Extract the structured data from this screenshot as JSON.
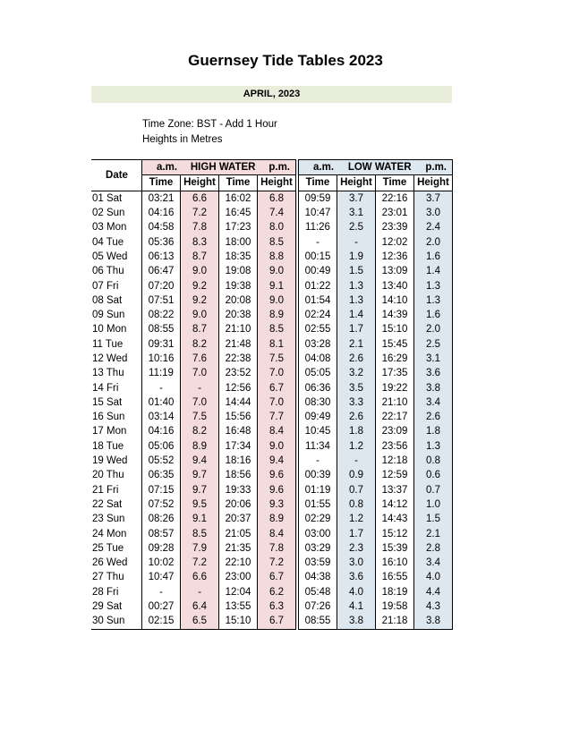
{
  "title": "Guernsey Tide Tables 2023",
  "month": "APRIL, 2023",
  "meta": {
    "timezone": "Time Zone: BST - Add 1 Hour",
    "units": "Heights in Metres"
  },
  "headers": {
    "date": "Date",
    "am": "a.m.",
    "pm": "p.m.",
    "high_water": "HIGH WATER",
    "low_water": "LOW WATER",
    "time": "Time",
    "height": "Height"
  },
  "rows": [
    {
      "date": "01 Sat",
      "hw_am_t": "03:21",
      "hw_am_h": "6.6",
      "hw_pm_t": "16:02",
      "hw_pm_h": "6.8",
      "lw_am_t": "09:59",
      "lw_am_h": "3.7",
      "lw_pm_t": "22:16",
      "lw_pm_h": "3.7"
    },
    {
      "date": "02 Sun",
      "hw_am_t": "04:16",
      "hw_am_h": "7.2",
      "hw_pm_t": "16:45",
      "hw_pm_h": "7.4",
      "lw_am_t": "10:47",
      "lw_am_h": "3.1",
      "lw_pm_t": "23:01",
      "lw_pm_h": "3.0"
    },
    {
      "date": "03 Mon",
      "hw_am_t": "04:58",
      "hw_am_h": "7.8",
      "hw_pm_t": "17:23",
      "hw_pm_h": "8.0",
      "lw_am_t": "11:26",
      "lw_am_h": "2.5",
      "lw_pm_t": "23:39",
      "lw_pm_h": "2.4"
    },
    {
      "date": "04 Tue",
      "hw_am_t": "05:36",
      "hw_am_h": "8.3",
      "hw_pm_t": "18:00",
      "hw_pm_h": "8.5",
      "lw_am_t": "-",
      "lw_am_h": "-",
      "lw_pm_t": "12:02",
      "lw_pm_h": "2.0"
    },
    {
      "date": "05 Wed",
      "hw_am_t": "06:13",
      "hw_am_h": "8.7",
      "hw_pm_t": "18:35",
      "hw_pm_h": "8.8",
      "lw_am_t": "00:15",
      "lw_am_h": "1.9",
      "lw_pm_t": "12:36",
      "lw_pm_h": "1.6"
    },
    {
      "date": "06 Thu",
      "hw_am_t": "06:47",
      "hw_am_h": "9.0",
      "hw_pm_t": "19:08",
      "hw_pm_h": "9.0",
      "lw_am_t": "00:49",
      "lw_am_h": "1.5",
      "lw_pm_t": "13:09",
      "lw_pm_h": "1.4"
    },
    {
      "date": "07 Fri",
      "hw_am_t": "07:20",
      "hw_am_h": "9.2",
      "hw_pm_t": "19:38",
      "hw_pm_h": "9.1",
      "lw_am_t": "01:22",
      "lw_am_h": "1.3",
      "lw_pm_t": "13:40",
      "lw_pm_h": "1.3"
    },
    {
      "date": "08 Sat",
      "hw_am_t": "07:51",
      "hw_am_h": "9.2",
      "hw_pm_t": "20:08",
      "hw_pm_h": "9.0",
      "lw_am_t": "01:54",
      "lw_am_h": "1.3",
      "lw_pm_t": "14:10",
      "lw_pm_h": "1.3"
    },
    {
      "date": "09 Sun",
      "hw_am_t": "08:22",
      "hw_am_h": "9.0",
      "hw_pm_t": "20:38",
      "hw_pm_h": "8.9",
      "lw_am_t": "02:24",
      "lw_am_h": "1.4",
      "lw_pm_t": "14:39",
      "lw_pm_h": "1.6"
    },
    {
      "date": "10 Mon",
      "hw_am_t": "08:55",
      "hw_am_h": "8.7",
      "hw_pm_t": "21:10",
      "hw_pm_h": "8.5",
      "lw_am_t": "02:55",
      "lw_am_h": "1.7",
      "lw_pm_t": "15:10",
      "lw_pm_h": "2.0"
    },
    {
      "date": "11 Tue",
      "hw_am_t": "09:31",
      "hw_am_h": "8.2",
      "hw_pm_t": "21:48",
      "hw_pm_h": "8.1",
      "lw_am_t": "03:28",
      "lw_am_h": "2.1",
      "lw_pm_t": "15:45",
      "lw_pm_h": "2.5"
    },
    {
      "date": "12 Wed",
      "hw_am_t": "10:16",
      "hw_am_h": "7.6",
      "hw_pm_t": "22:38",
      "hw_pm_h": "7.5",
      "lw_am_t": "04:08",
      "lw_am_h": "2.6",
      "lw_pm_t": "16:29",
      "lw_pm_h": "3.1"
    },
    {
      "date": "13 Thu",
      "hw_am_t": "11:19",
      "hw_am_h": "7.0",
      "hw_pm_t": "23:52",
      "hw_pm_h": "7.0",
      "lw_am_t": "05:05",
      "lw_am_h": "3.2",
      "lw_pm_t": "17:35",
      "lw_pm_h": "3.6"
    },
    {
      "date": "14 Fri",
      "hw_am_t": "-",
      "hw_am_h": "-",
      "hw_pm_t": "12:56",
      "hw_pm_h": "6.7",
      "lw_am_t": "06:36",
      "lw_am_h": "3.5",
      "lw_pm_t": "19:22",
      "lw_pm_h": "3.8"
    },
    {
      "date": "15 Sat",
      "hw_am_t": "01:40",
      "hw_am_h": "7.0",
      "hw_pm_t": "14:44",
      "hw_pm_h": "7.0",
      "lw_am_t": "08:30",
      "lw_am_h": "3.3",
      "lw_pm_t": "21:10",
      "lw_pm_h": "3.4"
    },
    {
      "date": "16 Sun",
      "hw_am_t": "03:14",
      "hw_am_h": "7.5",
      "hw_pm_t": "15:56",
      "hw_pm_h": "7.7",
      "lw_am_t": "09:49",
      "lw_am_h": "2.6",
      "lw_pm_t": "22:17",
      "lw_pm_h": "2.6"
    },
    {
      "date": "17 Mon",
      "hw_am_t": "04:16",
      "hw_am_h": "8.2",
      "hw_pm_t": "16:48",
      "hw_pm_h": "8.4",
      "lw_am_t": "10:45",
      "lw_am_h": "1.8",
      "lw_pm_t": "23:09",
      "lw_pm_h": "1.8"
    },
    {
      "date": "18 Tue",
      "hw_am_t": "05:06",
      "hw_am_h": "8.9",
      "hw_pm_t": "17:34",
      "hw_pm_h": "9.0",
      "lw_am_t": "11:34",
      "lw_am_h": "1.2",
      "lw_pm_t": "23:56",
      "lw_pm_h": "1.3"
    },
    {
      "date": "19 Wed",
      "hw_am_t": "05:52",
      "hw_am_h": "9.4",
      "hw_pm_t": "18:16",
      "hw_pm_h": "9.4",
      "lw_am_t": "-",
      "lw_am_h": "-",
      "lw_pm_t": "12:18",
      "lw_pm_h": "0.8"
    },
    {
      "date": "20 Thu",
      "hw_am_t": "06:35",
      "hw_am_h": "9.7",
      "hw_pm_t": "18:56",
      "hw_pm_h": "9.6",
      "lw_am_t": "00:39",
      "lw_am_h": "0.9",
      "lw_pm_t": "12:59",
      "lw_pm_h": "0.6"
    },
    {
      "date": "21 Fri",
      "hw_am_t": "07:15",
      "hw_am_h": "9.7",
      "hw_pm_t": "19:33",
      "hw_pm_h": "9.6",
      "lw_am_t": "01:19",
      "lw_am_h": "0.7",
      "lw_pm_t": "13:37",
      "lw_pm_h": "0.7"
    },
    {
      "date": "22 Sat",
      "hw_am_t": "07:52",
      "hw_am_h": "9.5",
      "hw_pm_t": "20:06",
      "hw_pm_h": "9.3",
      "lw_am_t": "01:55",
      "lw_am_h": "0.8",
      "lw_pm_t": "14:12",
      "lw_pm_h": "1.0"
    },
    {
      "date": "23 Sun",
      "hw_am_t": "08:26",
      "hw_am_h": "9.1",
      "hw_pm_t": "20:37",
      "hw_pm_h": "8.9",
      "lw_am_t": "02:29",
      "lw_am_h": "1.2",
      "lw_pm_t": "14:43",
      "lw_pm_h": "1.5"
    },
    {
      "date": "24 Mon",
      "hw_am_t": "08:57",
      "hw_am_h": "8.5",
      "hw_pm_t": "21:05",
      "hw_pm_h": "8.4",
      "lw_am_t": "03:00",
      "lw_am_h": "1.7",
      "lw_pm_t": "15:12",
      "lw_pm_h": "2.1"
    },
    {
      "date": "25 Tue",
      "hw_am_t": "09:28",
      "hw_am_h": "7.9",
      "hw_pm_t": "21:35",
      "hw_pm_h": "7.8",
      "lw_am_t": "03:29",
      "lw_am_h": "2.3",
      "lw_pm_t": "15:39",
      "lw_pm_h": "2.8"
    },
    {
      "date": "26 Wed",
      "hw_am_t": "10:02",
      "hw_am_h": "7.2",
      "hw_pm_t": "22:10",
      "hw_pm_h": "7.2",
      "lw_am_t": "03:59",
      "lw_am_h": "3.0",
      "lw_pm_t": "16:10",
      "lw_pm_h": "3.4"
    },
    {
      "date": "27 Thu",
      "hw_am_t": "10:47",
      "hw_am_h": "6.6",
      "hw_pm_t": "23:00",
      "hw_pm_h": "6.7",
      "lw_am_t": "04:38",
      "lw_am_h": "3.6",
      "lw_pm_t": "16:55",
      "lw_pm_h": "4.0"
    },
    {
      "date": "28 Fri",
      "hw_am_t": "-",
      "hw_am_h": "-",
      "hw_pm_t": "12:04",
      "hw_pm_h": "6.2",
      "lw_am_t": "05:48",
      "lw_am_h": "4.0",
      "lw_pm_t": "18:19",
      "lw_pm_h": "4.4"
    },
    {
      "date": "29 Sat",
      "hw_am_t": "00:27",
      "hw_am_h": "6.4",
      "hw_pm_t": "13:55",
      "hw_pm_h": "6.3",
      "lw_am_t": "07:26",
      "lw_am_h": "4.1",
      "lw_pm_t": "19:58",
      "lw_pm_h": "4.3"
    },
    {
      "date": "30 Sun",
      "hw_am_t": "02:15",
      "hw_am_h": "6.5",
      "hw_pm_t": "15:10",
      "hw_pm_h": "6.7",
      "lw_am_t": "08:55",
      "lw_am_h": "3.8",
      "lw_pm_t": "21:18",
      "lw_pm_h": "3.8"
    }
  ]
}
